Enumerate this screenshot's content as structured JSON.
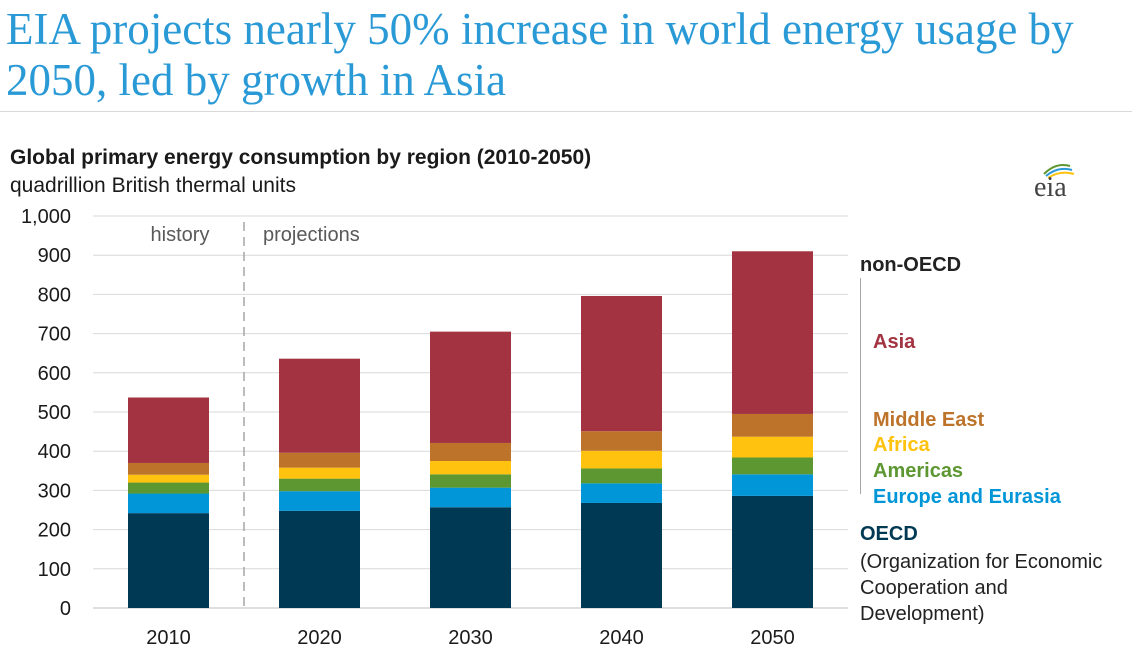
{
  "headline": "EIA projects nearly 50% increase in world energy usage by 2050, led by growth in Asia",
  "logo_text": "eia",
  "chart_data": {
    "type": "bar",
    "stacked": true,
    "title": "Global primary energy consumption by region (2010-2050)",
    "subtitle": "quadrillion British thermal units",
    "categories": [
      "2010",
      "2020",
      "2030",
      "2040",
      "2050"
    ],
    "ylim": [
      0,
      1000
    ],
    "yticks": [
      0,
      100,
      200,
      300,
      400,
      500,
      600,
      700,
      800,
      900,
      1000
    ],
    "ytick_labels": [
      "0",
      "100",
      "200",
      "300",
      "400",
      "500",
      "600",
      "700",
      "800",
      "900",
      "1,000"
    ],
    "grid": true,
    "series": [
      {
        "name": "OECD",
        "color": "#003953",
        "values": [
          242,
          248,
          257,
          268,
          286
        ]
      },
      {
        "name": "Europe and Eurasia",
        "color": "#0096d7",
        "values": [
          50,
          50,
          50,
          50,
          55
        ]
      },
      {
        "name": "Americas",
        "color": "#5d9732",
        "values": [
          28,
          32,
          34,
          38,
          43
        ]
      },
      {
        "name": "Africa",
        "color": "#ffc20e",
        "values": [
          20,
          28,
          34,
          45,
          53
        ]
      },
      {
        "name": "Middle East",
        "color": "#bd732a",
        "values": [
          30,
          38,
          46,
          50,
          58
        ]
      },
      {
        "name": "Asia",
        "color": "#a33340",
        "values": [
          167,
          240,
          284,
          345,
          415
        ]
      }
    ],
    "annotations": {
      "history": "history",
      "projections": "projections"
    },
    "legend_group_labels": {
      "non_oecd": "non-OECD",
      "oecd": "OECD"
    },
    "oecd_description": "(Organization for Economic Cooperation and Development)"
  }
}
